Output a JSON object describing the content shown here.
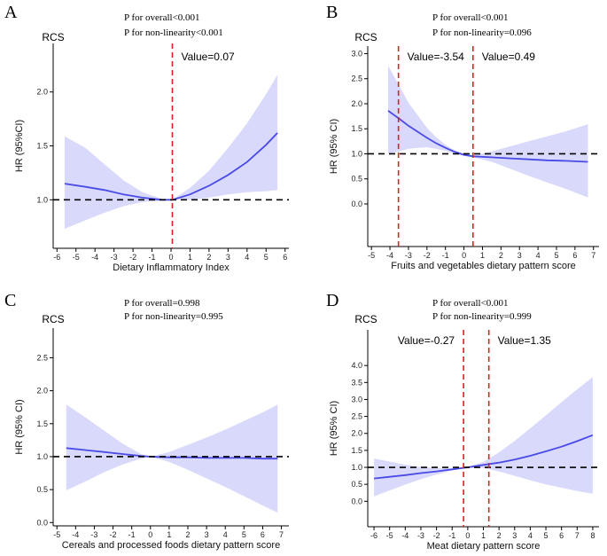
{
  "chart_data": [
    {
      "type": "line",
      "panel": "A",
      "title": "RCS",
      "p_overall": "P for overall<0.001",
      "p_nonlinear": "P for non-linearity<0.001",
      "xlabel": "Dietary Inflammatory Index",
      "ylabel": "HR (95%CI)",
      "xlim": [
        -6.2,
        6.2
      ],
      "ylim": [
        0.55,
        2.45
      ],
      "xticks": [
        -6,
        -5,
        -4,
        -3,
        -2,
        -1,
        0,
        1,
        2,
        3,
        4,
        5,
        6
      ],
      "yticks": [
        1.0,
        1.5,
        2.0
      ],
      "yticklabels": [
        "1.0",
        "1.5",
        "2.0"
      ],
      "reference_hr": 1.0,
      "vlines": [
        {
          "x": 0.07,
          "label": "Value=0.07",
          "label_side": "right"
        }
      ],
      "series": [
        {
          "name": "HR",
          "x": [
            -5.6,
            -4.5,
            -3.5,
            -2.5,
            -1.5,
            -0.5,
            0.07,
            1.0,
            2.0,
            3.0,
            4.0,
            5.0,
            5.6
          ],
          "y": [
            1.15,
            1.12,
            1.09,
            1.05,
            1.02,
            1.0,
            1.0,
            1.05,
            1.13,
            1.23,
            1.35,
            1.51,
            1.62
          ],
          "lower": [
            0.73,
            0.81,
            0.88,
            0.94,
            0.98,
            0.99,
            1.0,
            1.0,
            1.02,
            1.05,
            1.07,
            1.08,
            1.09
          ],
          "upper": [
            1.59,
            1.48,
            1.33,
            1.18,
            1.07,
            1.01,
            1.0,
            1.11,
            1.27,
            1.48,
            1.71,
            1.98,
            2.16
          ]
        }
      ]
    },
    {
      "type": "line",
      "panel": "B",
      "title": "RCS",
      "p_overall": "P for overall<0.001",
      "p_nonlinear": "P for non-linearity=0.096",
      "xlabel": "Fruits and vegetables dietary pattern score",
      "ylabel": "HR (95% CI)",
      "xlim": [
        -5.2,
        7.3
      ],
      "ylim": [
        -0.85,
        3.15
      ],
      "xticks": [
        -5,
        -4,
        -3,
        -2,
        -1,
        0,
        1,
        2,
        3,
        4,
        5,
        6,
        7
      ],
      "yticks": [
        0.0,
        0.5,
        1.0,
        1.5,
        2.0,
        2.5,
        3.0
      ],
      "yticklabels": [
        "0.0",
        "0.5",
        "1.0",
        "1.5",
        "2.0",
        "2.5",
        "3.0"
      ],
      "reference_hr": 1.0,
      "vlines": [
        {
          "x": -3.54,
          "label": "Value=-3.54",
          "label_side": "right"
        },
        {
          "x": 0.49,
          "label": "Value=0.49",
          "label_side": "right"
        }
      ],
      "series": [
        {
          "name": "HR",
          "x": [
            -4.1,
            -3.5,
            -3.0,
            -2.5,
            -2.0,
            -1.5,
            -1.0,
            -0.5,
            0.0,
            0.49,
            1.5,
            2.5,
            3.5,
            4.5,
            5.5,
            6.7
          ],
          "y": [
            1.86,
            1.7,
            1.56,
            1.44,
            1.32,
            1.21,
            1.12,
            1.04,
            0.98,
            0.95,
            0.93,
            0.91,
            0.89,
            0.87,
            0.86,
            0.84
          ],
          "lower": [
            1.0,
            1.05,
            1.1,
            1.12,
            1.13,
            1.1,
            1.06,
            1.0,
            0.96,
            0.93,
            0.84,
            0.7,
            0.56,
            0.43,
            0.3,
            0.13
          ],
          "upper": [
            2.76,
            2.36,
            2.02,
            1.77,
            1.52,
            1.33,
            1.18,
            1.07,
            1.0,
            0.97,
            1.05,
            1.15,
            1.25,
            1.35,
            1.45,
            1.59
          ]
        }
      ]
    },
    {
      "type": "line",
      "panel": "C",
      "title": "RCS",
      "p_overall": "P for overall=0.998",
      "p_nonlinear": "P for non-linearity=0.995",
      "xlabel": "Cereals and processed foods dietary pattern score",
      "ylabel": "HR (95% CI)",
      "xlim": [
        -5.2,
        7.4
      ],
      "ylim": [
        -0.05,
        2.95
      ],
      "xticks": [
        -5,
        -4,
        -3,
        -2,
        -1,
        0,
        1,
        2,
        3,
        4,
        5,
        6,
        7
      ],
      "yticks": [
        0.0,
        0.5,
        1.0,
        1.5,
        2.0,
        2.5
      ],
      "yticklabels": [
        "0.0",
        "0.5",
        "1.0",
        "1.5",
        "2.0",
        "2.5"
      ],
      "reference_hr": 1.0,
      "vlines": [],
      "series": [
        {
          "name": "HR",
          "x": [
            -4.5,
            -3.5,
            -2.5,
            -1.5,
            -0.5,
            0.0,
            1.0,
            2.0,
            3.0,
            4.0,
            5.0,
            6.0,
            6.8
          ],
          "y": [
            1.13,
            1.1,
            1.07,
            1.04,
            1.01,
            1.0,
            0.99,
            0.99,
            0.98,
            0.98,
            0.98,
            0.97,
            0.97
          ],
          "lower": [
            0.49,
            0.62,
            0.76,
            0.88,
            0.97,
            1.0,
            0.92,
            0.8,
            0.67,
            0.54,
            0.4,
            0.26,
            0.15
          ],
          "upper": [
            1.79,
            1.6,
            1.4,
            1.2,
            1.04,
            1.0,
            1.07,
            1.18,
            1.29,
            1.41,
            1.54,
            1.67,
            1.79
          ]
        }
      ]
    },
    {
      "type": "line",
      "panel": "D",
      "title": "RCS",
      "p_overall": "P for overall<0.001",
      "p_nonlinear": "P for non-linearity=0.999",
      "xlabel": "Meat dietary pattern score",
      "ylabel": "HR (95% CI)",
      "xlim": [
        -6.4,
        8.4
      ],
      "ylim": [
        -0.75,
        5.05
      ],
      "xticks": [
        -6,
        -5,
        -4,
        -3,
        -2,
        -1,
        0,
        1,
        2,
        3,
        4,
        5,
        6,
        7,
        8
      ],
      "yticks": [
        0.0,
        0.5,
        1.0,
        1.5,
        2.0,
        2.5,
        3.0,
        3.5,
        4.0
      ],
      "yticklabels": [
        "0.0",
        "0.5",
        "1.0",
        "1.5",
        "2.0",
        "2.5",
        "3.0",
        "3.5",
        "4.0"
      ],
      "reference_hr": 1.0,
      "vlines": [
        {
          "x": -0.27,
          "label": "Value=-0.27",
          "label_side": "left"
        },
        {
          "x": 1.35,
          "label": "Value=1.35",
          "label_side": "right"
        }
      ],
      "series": [
        {
          "name": "HR",
          "x": [
            -6.0,
            -5.0,
            -4.0,
            -3.0,
            -2.0,
            -1.0,
            0.0,
            1.0,
            2.0,
            3.0,
            4.0,
            5.0,
            6.0,
            7.0,
            8.0
          ],
          "y": [
            0.67,
            0.72,
            0.77,
            0.83,
            0.88,
            0.94,
            1.0,
            1.07,
            1.14,
            1.23,
            1.34,
            1.47,
            1.61,
            1.77,
            1.95
          ],
          "lower": [
            0.14,
            0.32,
            0.49,
            0.65,
            0.79,
            0.91,
            0.99,
            0.98,
            0.88,
            0.75,
            0.62,
            0.5,
            0.4,
            0.3,
            0.22
          ],
          "upper": [
            1.26,
            1.17,
            1.08,
            1.01,
            0.98,
            0.97,
            1.01,
            1.16,
            1.44,
            1.78,
            2.15,
            2.53,
            2.92,
            3.3,
            3.66
          ]
        }
      ]
    }
  ]
}
